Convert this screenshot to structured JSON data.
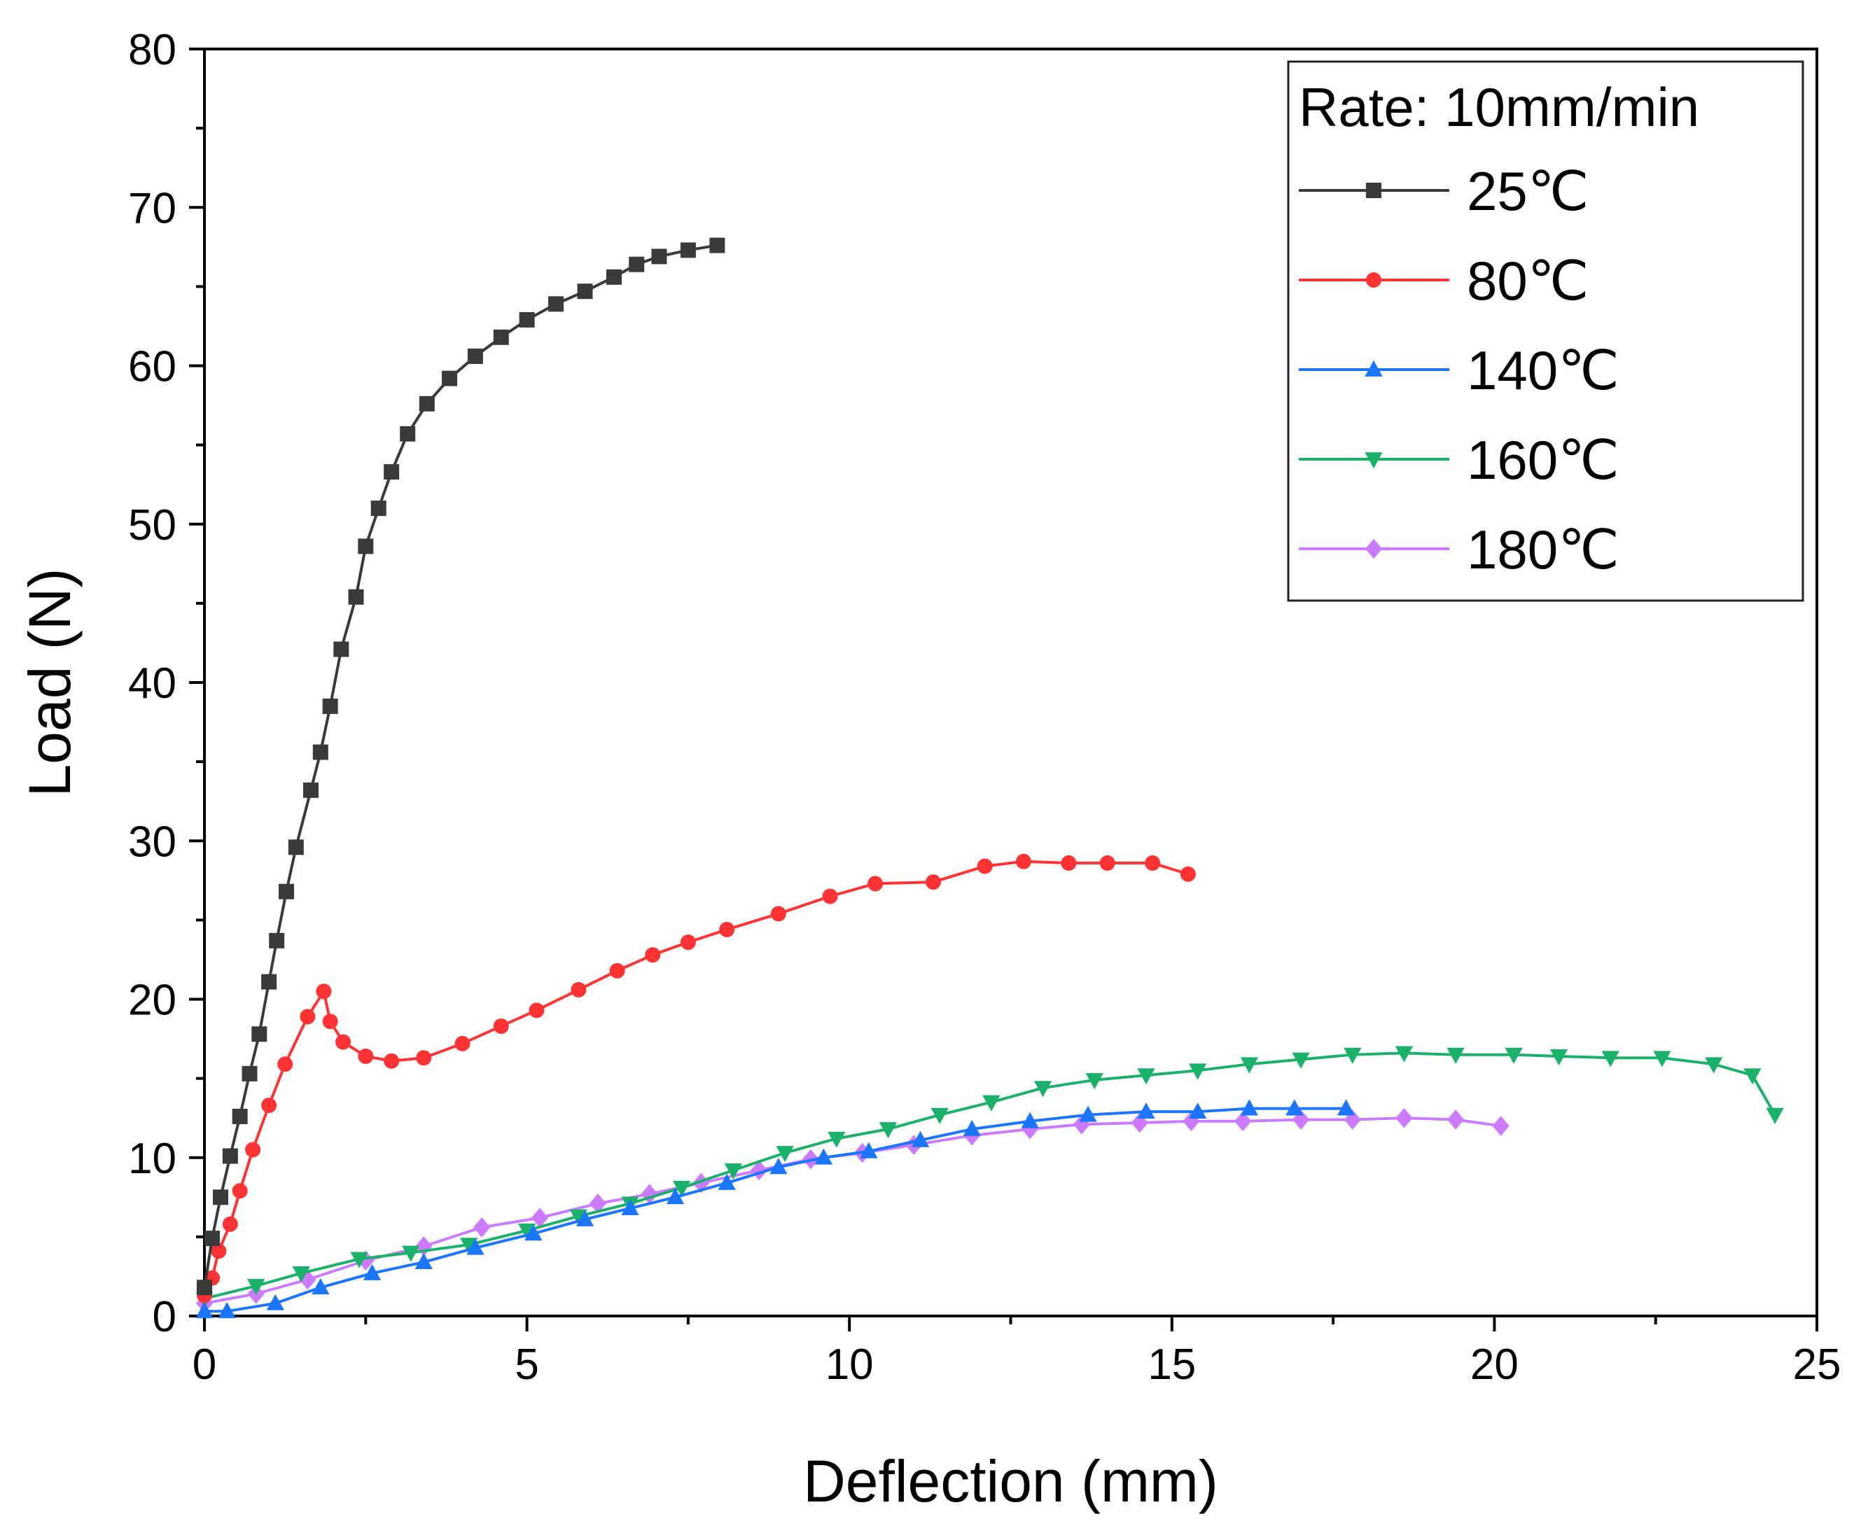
{
  "chart_data": {
    "type": "line",
    "xlabel": "Deflection (mm)",
    "ylabel": "Load (N)",
    "xlim": [
      0,
      25
    ],
    "ylim": [
      0,
      80
    ],
    "xticks": [
      "0",
      "5",
      "10",
      "15",
      "20",
      "25"
    ],
    "yticks": [
      "0",
      "10",
      "20",
      "30",
      "40",
      "50",
      "60",
      "70",
      "80"
    ],
    "grid": false,
    "legend": {
      "title": "Rate: 10mm/min",
      "placement": "top-right"
    },
    "series": [
      {
        "name": "25℃",
        "color": "#3a3a3a",
        "marker": "square",
        "points": [
          [
            0,
            1.8
          ],
          [
            0.12,
            4.9
          ],
          [
            0.25,
            7.5
          ],
          [
            0.4,
            10.1
          ],
          [
            0.55,
            12.6
          ],
          [
            0.7,
            15.3
          ],
          [
            0.85,
            17.8
          ],
          [
            1.0,
            21.1
          ],
          [
            1.12,
            23.7
          ],
          [
            1.27,
            26.8
          ],
          [
            1.42,
            29.6
          ],
          [
            1.65,
            33.2
          ],
          [
            1.8,
            35.6
          ],
          [
            1.95,
            38.5
          ],
          [
            2.12,
            42.1
          ],
          [
            2.35,
            45.4
          ],
          [
            2.5,
            48.6
          ],
          [
            2.7,
            51.0
          ],
          [
            2.9,
            53.3
          ],
          [
            3.15,
            55.7
          ],
          [
            3.45,
            57.6
          ],
          [
            3.8,
            59.2
          ],
          [
            4.2,
            60.6
          ],
          [
            4.6,
            61.8
          ],
          [
            5.0,
            62.9
          ],
          [
            5.45,
            63.9
          ],
          [
            5.9,
            64.7
          ],
          [
            6.35,
            65.6
          ],
          [
            6.7,
            66.4
          ],
          [
            7.05,
            66.9
          ],
          [
            7.5,
            67.3
          ],
          [
            7.95,
            67.6
          ]
        ]
      },
      {
        "name": "80℃",
        "color": "#ff3333",
        "marker": "circle",
        "points": [
          [
            0,
            1.3
          ],
          [
            0.12,
            2.4
          ],
          [
            0.22,
            4.1
          ],
          [
            0.4,
            5.8
          ],
          [
            0.55,
            7.9
          ],
          [
            0.75,
            10.5
          ],
          [
            1.0,
            13.3
          ],
          [
            1.25,
            15.9
          ],
          [
            1.6,
            18.9
          ],
          [
            1.85,
            20.5
          ],
          [
            1.95,
            18.6
          ],
          [
            2.15,
            17.3
          ],
          [
            2.5,
            16.4
          ],
          [
            2.9,
            16.1
          ],
          [
            3.4,
            16.3
          ],
          [
            4.0,
            17.2
          ],
          [
            4.6,
            18.3
          ],
          [
            5.15,
            19.3
          ],
          [
            5.8,
            20.6
          ],
          [
            6.4,
            21.8
          ],
          [
            6.95,
            22.8
          ],
          [
            7.5,
            23.6
          ],
          [
            8.1,
            24.4
          ],
          [
            8.9,
            25.4
          ],
          [
            9.7,
            26.5
          ],
          [
            10.4,
            27.3
          ],
          [
            11.3,
            27.4
          ],
          [
            12.1,
            28.4
          ],
          [
            12.7,
            28.7
          ],
          [
            13.4,
            28.6
          ],
          [
            14.0,
            28.6
          ],
          [
            14.7,
            28.6
          ],
          [
            15.25,
            27.9
          ]
        ]
      },
      {
        "name": "140℃",
        "color": "#1a75ff",
        "marker": "triangle-up",
        "points": [
          [
            0,
            0.3
          ],
          [
            0.35,
            0.3
          ],
          [
            1.1,
            0.8
          ],
          [
            1.8,
            1.8
          ],
          [
            2.6,
            2.7
          ],
          [
            3.4,
            3.4
          ],
          [
            4.2,
            4.3
          ],
          [
            5.1,
            5.2
          ],
          [
            5.9,
            6.1
          ],
          [
            6.6,
            6.8
          ],
          [
            7.3,
            7.5
          ],
          [
            8.1,
            8.4
          ],
          [
            8.9,
            9.4
          ],
          [
            9.6,
            10.0
          ],
          [
            10.3,
            10.4
          ],
          [
            11.1,
            11.1
          ],
          [
            11.9,
            11.8
          ],
          [
            12.8,
            12.3
          ],
          [
            13.7,
            12.7
          ],
          [
            14.6,
            12.9
          ],
          [
            15.4,
            12.9
          ],
          [
            16.2,
            13.1
          ],
          [
            16.9,
            13.1
          ],
          [
            17.7,
            13.1
          ]
        ]
      },
      {
        "name": "160℃",
        "color": "#1ab26b",
        "marker": "triangle-down",
        "points": [
          [
            0,
            1.1
          ],
          [
            0.8,
            1.9
          ],
          [
            1.5,
            2.7
          ],
          [
            2.4,
            3.6
          ],
          [
            3.2,
            4.0
          ],
          [
            4.1,
            4.5
          ],
          [
            5.0,
            5.4
          ],
          [
            5.8,
            6.3
          ],
          [
            6.6,
            7.1
          ],
          [
            7.4,
            8.1
          ],
          [
            8.2,
            9.2
          ],
          [
            9.0,
            10.3
          ],
          [
            9.8,
            11.2
          ],
          [
            10.6,
            11.8
          ],
          [
            11.4,
            12.7
          ],
          [
            12.2,
            13.5
          ],
          [
            13.0,
            14.4
          ],
          [
            13.8,
            14.9
          ],
          [
            14.6,
            15.2
          ],
          [
            15.4,
            15.5
          ],
          [
            16.2,
            15.9
          ],
          [
            17.0,
            16.2
          ],
          [
            17.8,
            16.5
          ],
          [
            18.6,
            16.6
          ],
          [
            19.4,
            16.5
          ],
          [
            20.3,
            16.5
          ],
          [
            21.0,
            16.4
          ],
          [
            21.8,
            16.3
          ],
          [
            22.6,
            16.3
          ],
          [
            23.4,
            15.9
          ],
          [
            24.0,
            15.2
          ],
          [
            24.35,
            12.7
          ]
        ]
      },
      {
        "name": "180℃",
        "color": "#cc7aff",
        "marker": "diamond",
        "points": [
          [
            0,
            0.8
          ],
          [
            0.8,
            1.4
          ],
          [
            1.6,
            2.3
          ],
          [
            2.5,
            3.5
          ],
          [
            3.4,
            4.4
          ],
          [
            4.3,
            5.6
          ],
          [
            5.2,
            6.2
          ],
          [
            6.1,
            7.1
          ],
          [
            6.9,
            7.7
          ],
          [
            7.7,
            8.4
          ],
          [
            8.6,
            9.2
          ],
          [
            9.4,
            9.9
          ],
          [
            10.2,
            10.3
          ],
          [
            11.0,
            10.8
          ],
          [
            11.9,
            11.4
          ],
          [
            12.8,
            11.8
          ],
          [
            13.6,
            12.1
          ],
          [
            14.5,
            12.2
          ],
          [
            15.3,
            12.3
          ],
          [
            16.1,
            12.3
          ],
          [
            17.0,
            12.4
          ],
          [
            17.8,
            12.4
          ],
          [
            18.6,
            12.5
          ],
          [
            19.4,
            12.4
          ],
          [
            20.1,
            12.0
          ]
        ]
      }
    ]
  }
}
